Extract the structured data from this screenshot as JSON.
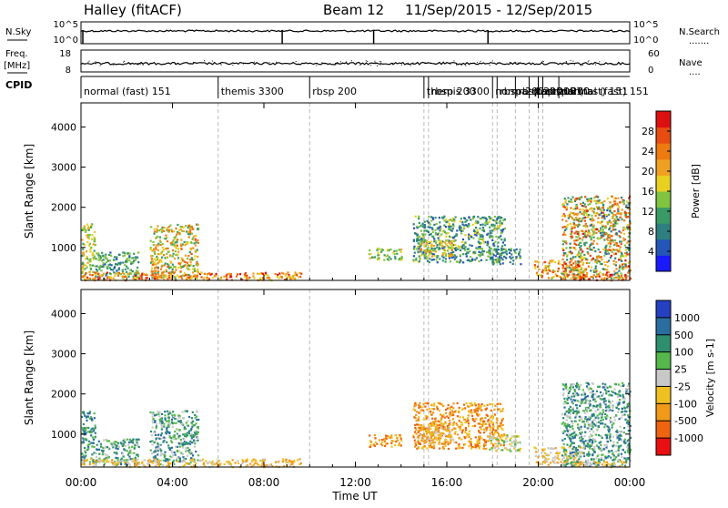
{
  "header": {
    "station": "Halley (fitACF)",
    "beam": "Beam 12",
    "date_range": "11/Sep/2015 - 12/Sep/2015"
  },
  "noise_panel": {
    "left_label": "N.Sky",
    "left_ticks": [
      "10^5",
      "10^0"
    ],
    "right_label": "N.Search",
    "right_ticks": [
      "10^5",
      "10^0"
    ]
  },
  "freq_panel": {
    "left_label_1": "Freq.",
    "left_label_2": "[MHz]",
    "left_ticks": [
      "18",
      "8"
    ],
    "right_label": "Nave",
    "right_ticks": [
      "60",
      "0"
    ]
  },
  "cpid": {
    "label": "CPID",
    "segments": [
      {
        "label": "normal (fast) 151",
        "start_h": 0.0
      },
      {
        "label": "themis 3300",
        "start_h": 6.0
      },
      {
        "label": "rbsp 200",
        "start_h": 10.0
      },
      {
        "label": "themis 3300",
        "start_h": 15.0
      },
      {
        "label": "rbsp 200",
        "start_h": 15.2
      },
      {
        "label": "normal (fast) 151",
        "start_h": 18.0
      },
      {
        "label": "rbsp 200",
        "start_h": 18.2
      },
      {
        "label": "rbsp 200",
        "start_h": 19.0
      },
      {
        "label": "rbsp 200",
        "start_h": 19.6
      },
      {
        "label": "normal (fast) 151",
        "start_h": 20.0
      },
      {
        "label": "rbsp 200",
        "start_h": 20.2
      },
      {
        "label": "normal (fast) 151",
        "start_h": 20.9
      }
    ]
  },
  "chart_data": [
    {
      "type": "heatmap",
      "name": "power",
      "ylabel": "Slant Range [km]",
      "y_ticks": [
        "1000",
        "2000",
        "3000",
        "4000"
      ],
      "ylim": [
        180,
        4600
      ],
      "xlim_h": [
        0,
        24
      ],
      "colorbar": {
        "label": "Power [dB]",
        "ticks": [
          "4",
          "8",
          "12",
          "16",
          "20",
          "24",
          "28"
        ],
        "range": [
          0,
          32
        ],
        "colors": [
          "#1a1aff",
          "#2555b8",
          "#2e7f7f",
          "#3a9a66",
          "#80c440",
          "#e8d020",
          "#f0a020",
          "#ee7a10",
          "#e84c10",
          "#dd1010"
        ]
      },
      "regions": [
        {
          "t": [
            0.0,
            0.6
          ],
          "r": [
            300,
            1600
          ],
          "v": [
            10,
            22
          ]
        },
        {
          "t": [
            0.6,
            2.5
          ],
          "r": [
            250,
            900
          ],
          "v": [
            6,
            16
          ]
        },
        {
          "t": [
            3.0,
            5.1
          ],
          "r": [
            250,
            1600
          ],
          "v": [
            10,
            26
          ]
        },
        {
          "t": [
            0.0,
            9.6
          ],
          "r": [
            200,
            400
          ],
          "v": [
            16,
            30
          ]
        },
        {
          "t": [
            12.5,
            14.0
          ],
          "r": [
            700,
            1000
          ],
          "v": [
            10,
            20
          ]
        },
        {
          "t": [
            14.5,
            18.5
          ],
          "r": [
            650,
            1800
          ],
          "v": [
            4,
            18
          ]
        },
        {
          "t": [
            14.8,
            16.3
          ],
          "r": [
            800,
            1200
          ],
          "v": [
            12,
            24
          ]
        },
        {
          "t": [
            17.8,
            19.2
          ],
          "r": [
            600,
            1000
          ],
          "v": [
            4,
            14
          ]
        },
        {
          "t": [
            19.8,
            22.0
          ],
          "r": [
            250,
            700
          ],
          "v": [
            14,
            28
          ]
        },
        {
          "t": [
            21.0,
            24.0
          ],
          "r": [
            220,
            2300
          ],
          "v": [
            6,
            30
          ]
        },
        {
          "t": [
            21.5,
            23.8
          ],
          "r": [
            200,
            350
          ],
          "v": [
            20,
            32
          ]
        }
      ]
    },
    {
      "type": "heatmap",
      "name": "velocity",
      "ylabel": "Slant Range [km]",
      "xlabel": "Time UT",
      "y_ticks": [
        "1000",
        "2000",
        "3000",
        "4000"
      ],
      "x_ticks": [
        "00:00",
        "04:00",
        "08:00",
        "12:00",
        "16:00",
        "20:00",
        "00:00"
      ],
      "ylim": [
        180,
        4600
      ],
      "xlim_h": [
        0,
        24
      ],
      "colorbar": {
        "label": "Velocity [m s-1]",
        "ticks": [
          "1000",
          "500",
          "100",
          "25",
          "-25",
          "-100",
          "-500",
          "-1000"
        ],
        "colors": [
          "#2540c0",
          "#2a6ea0",
          "#2e8f6e",
          "#55b84a",
          "#c8c8c8",
          "#f0c020",
          "#f09a18",
          "#ee6410",
          "#e81010"
        ]
      },
      "regions": [
        {
          "t": [
            0.0,
            0.6
          ],
          "r": [
            300,
            1600
          ],
          "v": [
            1,
            3
          ]
        },
        {
          "t": [
            0.6,
            2.5
          ],
          "r": [
            250,
            900
          ],
          "v": [
            1,
            4
          ]
        },
        {
          "t": [
            3.0,
            5.1
          ],
          "r": [
            250,
            1600
          ],
          "v": [
            1,
            4
          ]
        },
        {
          "t": [
            0.0,
            9.6
          ],
          "r": [
            200,
            400
          ],
          "v": [
            4,
            6
          ]
        },
        {
          "t": [
            12.5,
            14.0
          ],
          "r": [
            700,
            1000
          ],
          "v": [
            5,
            7
          ]
        },
        {
          "t": [
            14.5,
            18.5
          ],
          "r": [
            650,
            1800
          ],
          "v": [
            5,
            7
          ]
        },
        {
          "t": [
            14.8,
            16.3
          ],
          "r": [
            800,
            1200
          ],
          "v": [
            4,
            6
          ]
        },
        {
          "t": [
            17.8,
            19.2
          ],
          "r": [
            600,
            1000
          ],
          "v": [
            3,
            5
          ]
        },
        {
          "t": [
            19.8,
            22.0
          ],
          "r": [
            250,
            700
          ],
          "v": [
            4,
            6
          ]
        },
        {
          "t": [
            21.0,
            24.0
          ],
          "r": [
            220,
            2300
          ],
          "v": [
            1,
            4
          ]
        },
        {
          "t": [
            21.5,
            23.8
          ],
          "r": [
            200,
            350
          ],
          "v": [
            4,
            6
          ]
        }
      ]
    }
  ],
  "mode_change_times_h": [
    6.0,
    10.0,
    15.0,
    15.2,
    18.0,
    18.2,
    19.0,
    19.6,
    20.0,
    20.2
  ]
}
